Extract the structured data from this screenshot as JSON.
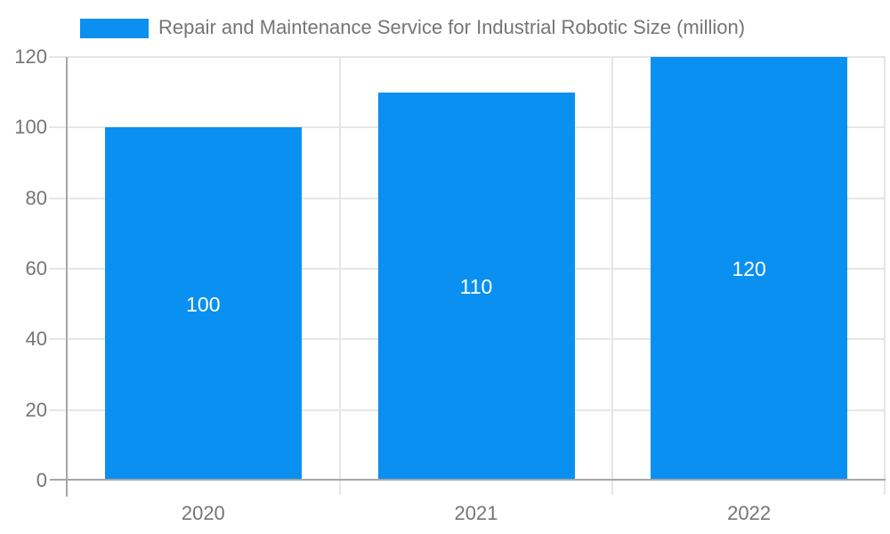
{
  "legend": {
    "label": "Repair and Maintenance Service for Industrial Robotic Size (million)"
  },
  "chart_data": {
    "type": "bar",
    "title": "",
    "xlabel": "",
    "ylabel": "",
    "categories": [
      "2020",
      "2021",
      "2022"
    ],
    "series": [
      {
        "name": "Repair and Maintenance Service for Industrial Robotic Size (million)",
        "values": [
          100,
          110,
          120
        ]
      }
    ],
    "value_labels": [
      "100",
      "110",
      "120"
    ],
    "ylim": [
      0,
      120
    ],
    "yticks": [
      0,
      20,
      40,
      60,
      80,
      100,
      120
    ],
    "grid": true,
    "legend_position": "top"
  },
  "colors": {
    "bar": "#0a90f0",
    "grid": "#e6e6e6",
    "axis": "#a6a6a6",
    "tick_text": "#757575",
    "value_label": "#ffffff",
    "background": "#ffffff"
  }
}
